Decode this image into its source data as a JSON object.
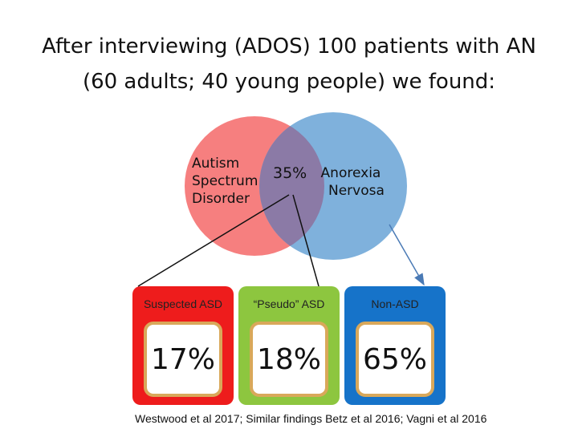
{
  "title": {
    "line1": "After interviewing (ADOS) 100 patients with AN",
    "line2": "(60 adults; 40 young people) we found:"
  },
  "venn": {
    "left_label": [
      "Autism",
      "Spectrum",
      "Disorder"
    ],
    "right_label": [
      "Anorexia",
      "Nervosa"
    ],
    "overlap_label": "35%",
    "colors": {
      "left": "#f67f7f",
      "right": "#7fb1dc",
      "overlap": "#8b7aa6"
    }
  },
  "boxes": [
    {
      "title": "Suspected ASD",
      "value": "17%",
      "color": "#ee1c1c"
    },
    {
      "title": "“Pseudo” ASD",
      "value": "18%",
      "color": "#8dc63f"
    },
    {
      "title": "Non-ASD",
      "value": "65%",
      "color": "#1673c9"
    }
  ],
  "citation": "Westwood et al 2017; Similar findings Betz et al 2016; Vagni et al 2016"
}
